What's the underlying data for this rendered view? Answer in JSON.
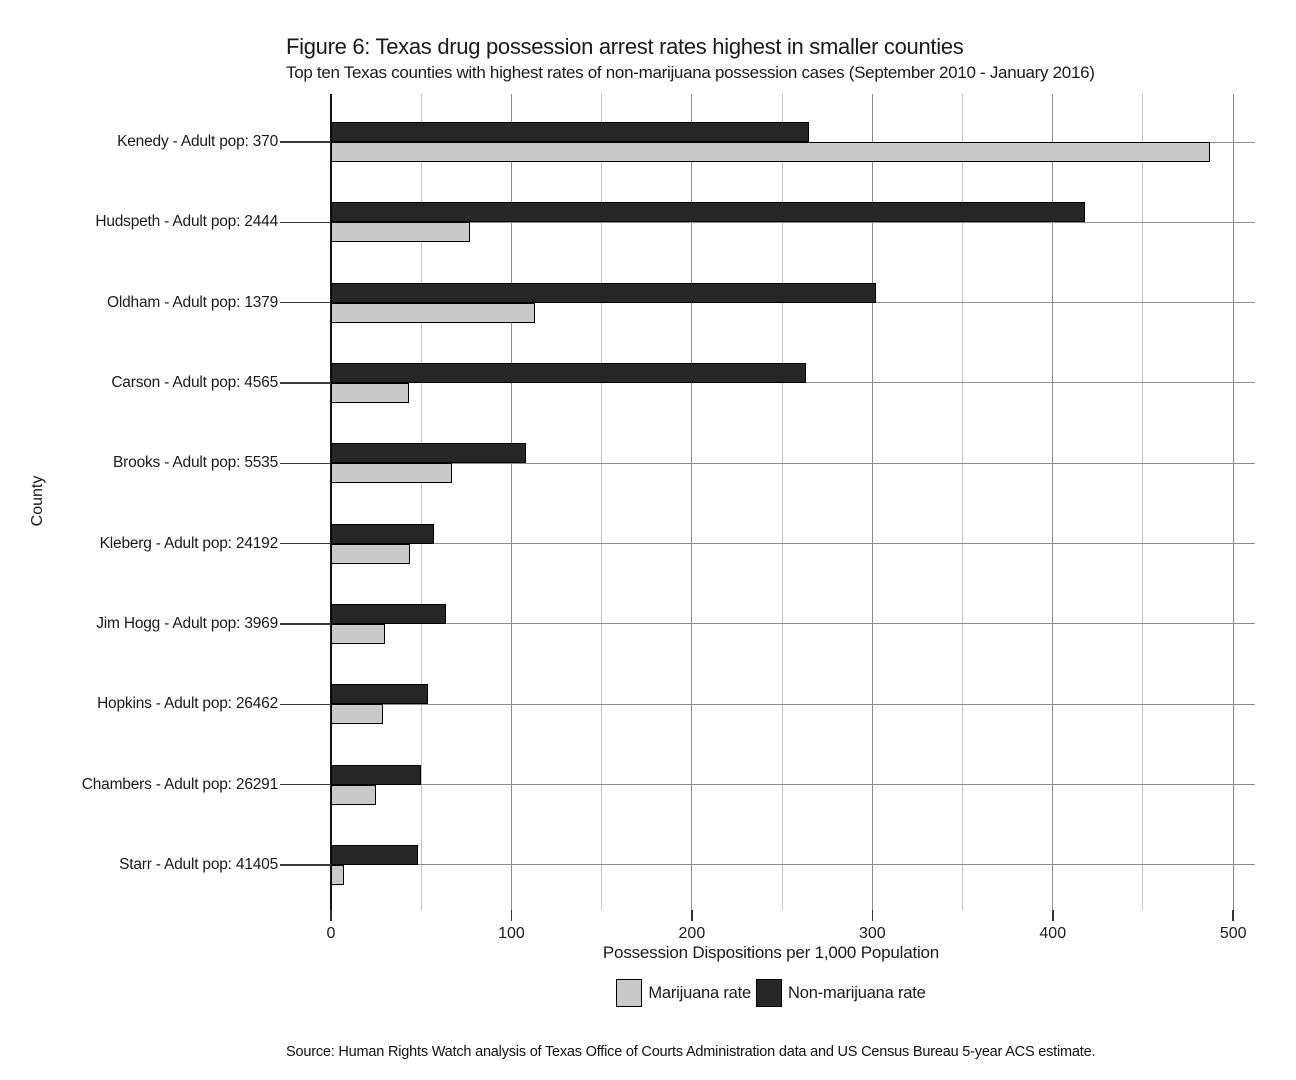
{
  "title": "Figure 6: Texas drug possession arrest rates highest in smaller counties",
  "subtitle": "Top ten Texas counties with highest rates of non-marijuana possession cases (September 2010 - January 2016)",
  "source": "Source: Human Rights Watch analysis of Texas Office of Courts Administration data and US Census Bureau 5-year ACS estimate.",
  "chart_data": {
    "type": "bar",
    "orientation": "horizontal",
    "xlabel": "Possession Dispositions per 1,000 Population",
    "ylabel": "County",
    "xlim": [
      0,
      512
    ],
    "x_ticks": [
      0,
      100,
      200,
      300,
      400,
      500
    ],
    "x_minor_grid_step": 50,
    "grid": "vertical major every 100 + minor every 50; horizontal line at each category center",
    "legend_position": "bottom",
    "categories": [
      "Kenedy - Adult pop: 370",
      "Hudspeth - Adult pop: 2444",
      "Oldham - Adult pop: 1379",
      "Carson - Adult pop: 4565",
      "Brooks - Adult pop: 5535",
      "Kleberg - Adult pop: 24192",
      "Jim Hogg - Adult pop: 3969",
      "Hopkins - Adult pop: 26462",
      "Chambers - Adult pop: 26291",
      "Starr - Adult pop: 41405"
    ],
    "series": [
      {
        "name": "Marijuana rate",
        "color": "#c9c9c9",
        "values": [
          487,
          77,
          113,
          43,
          67,
          44,
          30,
          29,
          25,
          7
        ]
      },
      {
        "name": "Non-marijuana rate",
        "color": "#262626",
        "values": [
          265,
          418,
          302,
          263,
          108,
          57,
          64,
          54,
          50,
          48
        ]
      }
    ],
    "style": {
      "bar_border_color": "#000000",
      "major_grid_color": "#8c8c8c",
      "minor_grid_color": "#c6c6c6",
      "axis_line_color": "#141414",
      "background": "#ffffff"
    }
  }
}
